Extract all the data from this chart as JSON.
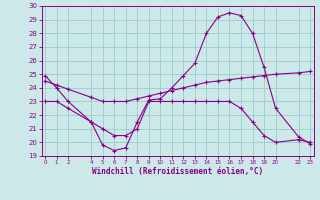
{
  "xlabel": "Windchill (Refroidissement éolien,°C)",
  "background_color": "#cce8e8",
  "grid_color": "#99cccc",
  "line_color": "#880088",
  "x_all": [
    0,
    1,
    2,
    4,
    5,
    6,
    7,
    8,
    9,
    10,
    11,
    12,
    13,
    14,
    15,
    16,
    17,
    18,
    19,
    20,
    22,
    23
  ],
  "line1_y": [
    24.9,
    24.0,
    23.0,
    21.5,
    19.8,
    19.4,
    19.6,
    21.5,
    23.1,
    23.2,
    24.0,
    24.9,
    25.8,
    28.0,
    29.2,
    29.5,
    29.3,
    28.0,
    25.5,
    22.5,
    20.4,
    19.9
  ],
  "line2_y": [
    24.5,
    24.2,
    23.9,
    23.3,
    23.0,
    23.0,
    23.0,
    23.2,
    23.4,
    23.6,
    23.8,
    24.0,
    24.2,
    24.4,
    24.5,
    24.6,
    24.7,
    24.8,
    24.9,
    25.0,
    25.1,
    25.2
  ],
  "line3_y": [
    23.0,
    23.0,
    22.5,
    21.5,
    21.0,
    20.5,
    20.5,
    21.0,
    23.0,
    23.0,
    23.0,
    23.0,
    23.0,
    23.0,
    23.0,
    23.0,
    22.5,
    21.5,
    20.5,
    20.0,
    20.2,
    20.0
  ],
  "ylim": [
    19,
    30
  ],
  "xlim": [
    -0.3,
    23.3
  ],
  "yticks": [
    19,
    20,
    21,
    22,
    23,
    24,
    25,
    26,
    27,
    28,
    29,
    30
  ],
  "xtick_positions": [
    0,
    1,
    2,
    4,
    5,
    6,
    7,
    8,
    9,
    10,
    11,
    12,
    13,
    14,
    15,
    16,
    17,
    18,
    19,
    20,
    22,
    23
  ],
  "xtick_labels": [
    "0",
    "1",
    "2",
    "4",
    "5",
    "6",
    "7",
    "8",
    "9",
    "10",
    "11",
    "12",
    "13",
    "14",
    "15",
    "16",
    "17",
    "18",
    "19",
    "20",
    "22",
    "23"
  ]
}
